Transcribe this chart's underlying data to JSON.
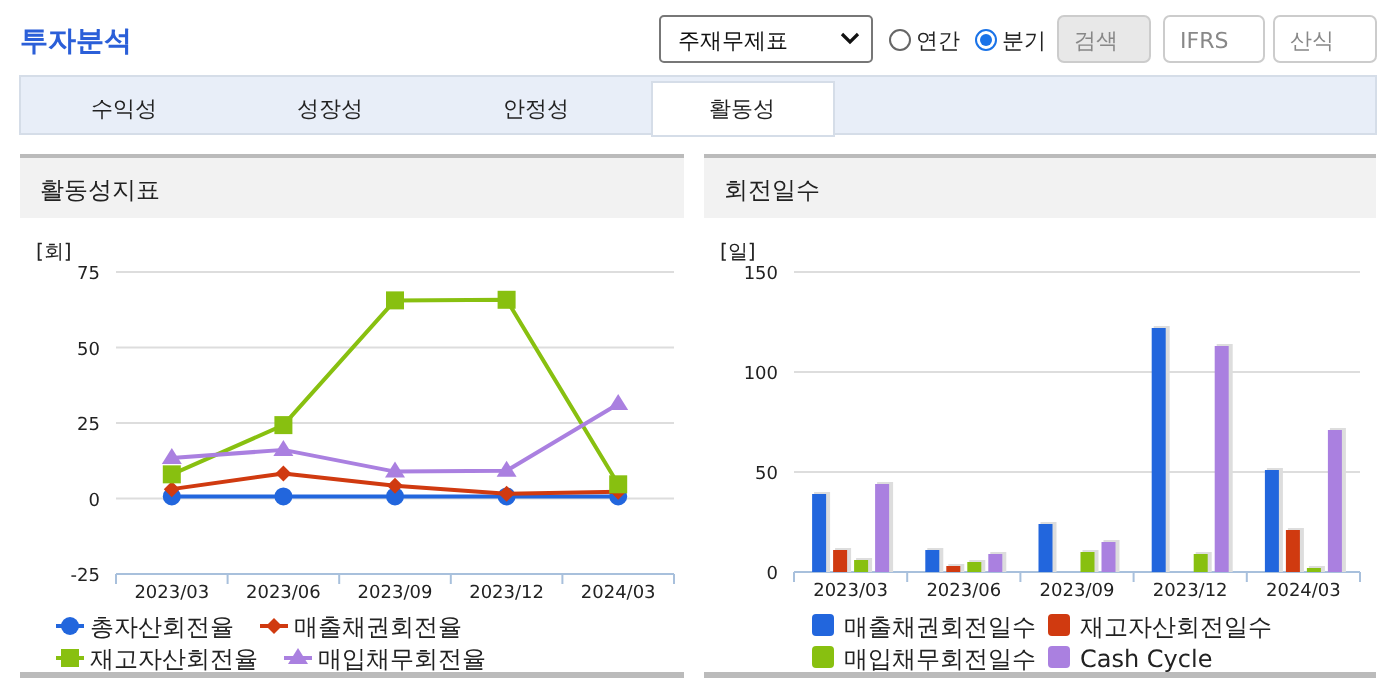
{
  "chart_data": [
    {
      "type": "other",
      "title": "투자분석",
      "annotations": [
        "주재무제표",
        "연간",
        "분기",
        "검색",
        "IFRS",
        "산식",
        "수익성",
        "성장성",
        "안정성",
        "활동성"
      ]
    },
    {
      "type": "line",
      "title": "활동성지표",
      "ylabel": "[회]",
      "categories": [
        "2023/03",
        "2023/06",
        "2023/09",
        "2023/12",
        "2024/03"
      ],
      "ylim": [
        -25,
        75
      ],
      "yticks": [
        -25,
        0,
        25,
        50,
        75
      ],
      "grid": "y",
      "legend": "bottom",
      "series": [
        {
          "name": "총자산회전율",
          "color": "#2266dd",
          "marker": "circle",
          "values": [
            0.7,
            0.7,
            0.7,
            0.7,
            0.7
          ]
        },
        {
          "name": "매출채권회전율",
          "color": "#d03a10",
          "marker": "diamond",
          "values": [
            3.1,
            8.3,
            4.2,
            1.6,
            2.2
          ]
        },
        {
          "name": "재고자산회전율",
          "color": "#88c010",
          "marker": "square",
          "values": [
            8.0,
            24.3,
            65.6,
            65.8,
            4.7
          ]
        },
        {
          "name": "매입채무회전율",
          "color": "#aa80e0",
          "marker": "triangle",
          "values": [
            13.4,
            16.1,
            8.9,
            9.2,
            31.3
          ]
        }
      ]
    },
    {
      "type": "bar",
      "title": "회전일수",
      "ylabel": "[일]",
      "categories": [
        "2023/03",
        "2023/06",
        "2023/09",
        "2023/12",
        "2024/03"
      ],
      "ylim": [
        0,
        150
      ],
      "yticks": [
        0,
        50,
        100,
        150
      ],
      "grid": "y",
      "legend": "bottom",
      "series": [
        {
          "name": "매출채권회전일수",
          "color": "#2266dd",
          "values": [
            39,
            11,
            24,
            122,
            51
          ]
        },
        {
          "name": "재고자산회전일수",
          "color": "#d03a10",
          "values": [
            11,
            3,
            0,
            0,
            21
          ]
        },
        {
          "name": "매입채무회전일수",
          "color": "#88c010",
          "values": [
            6,
            5,
            10,
            9,
            2
          ]
        },
        {
          "name": "Cash Cycle",
          "color": "#aa80e0",
          "values": [
            44,
            9,
            15,
            113,
            71
          ]
        }
      ]
    }
  ]
}
